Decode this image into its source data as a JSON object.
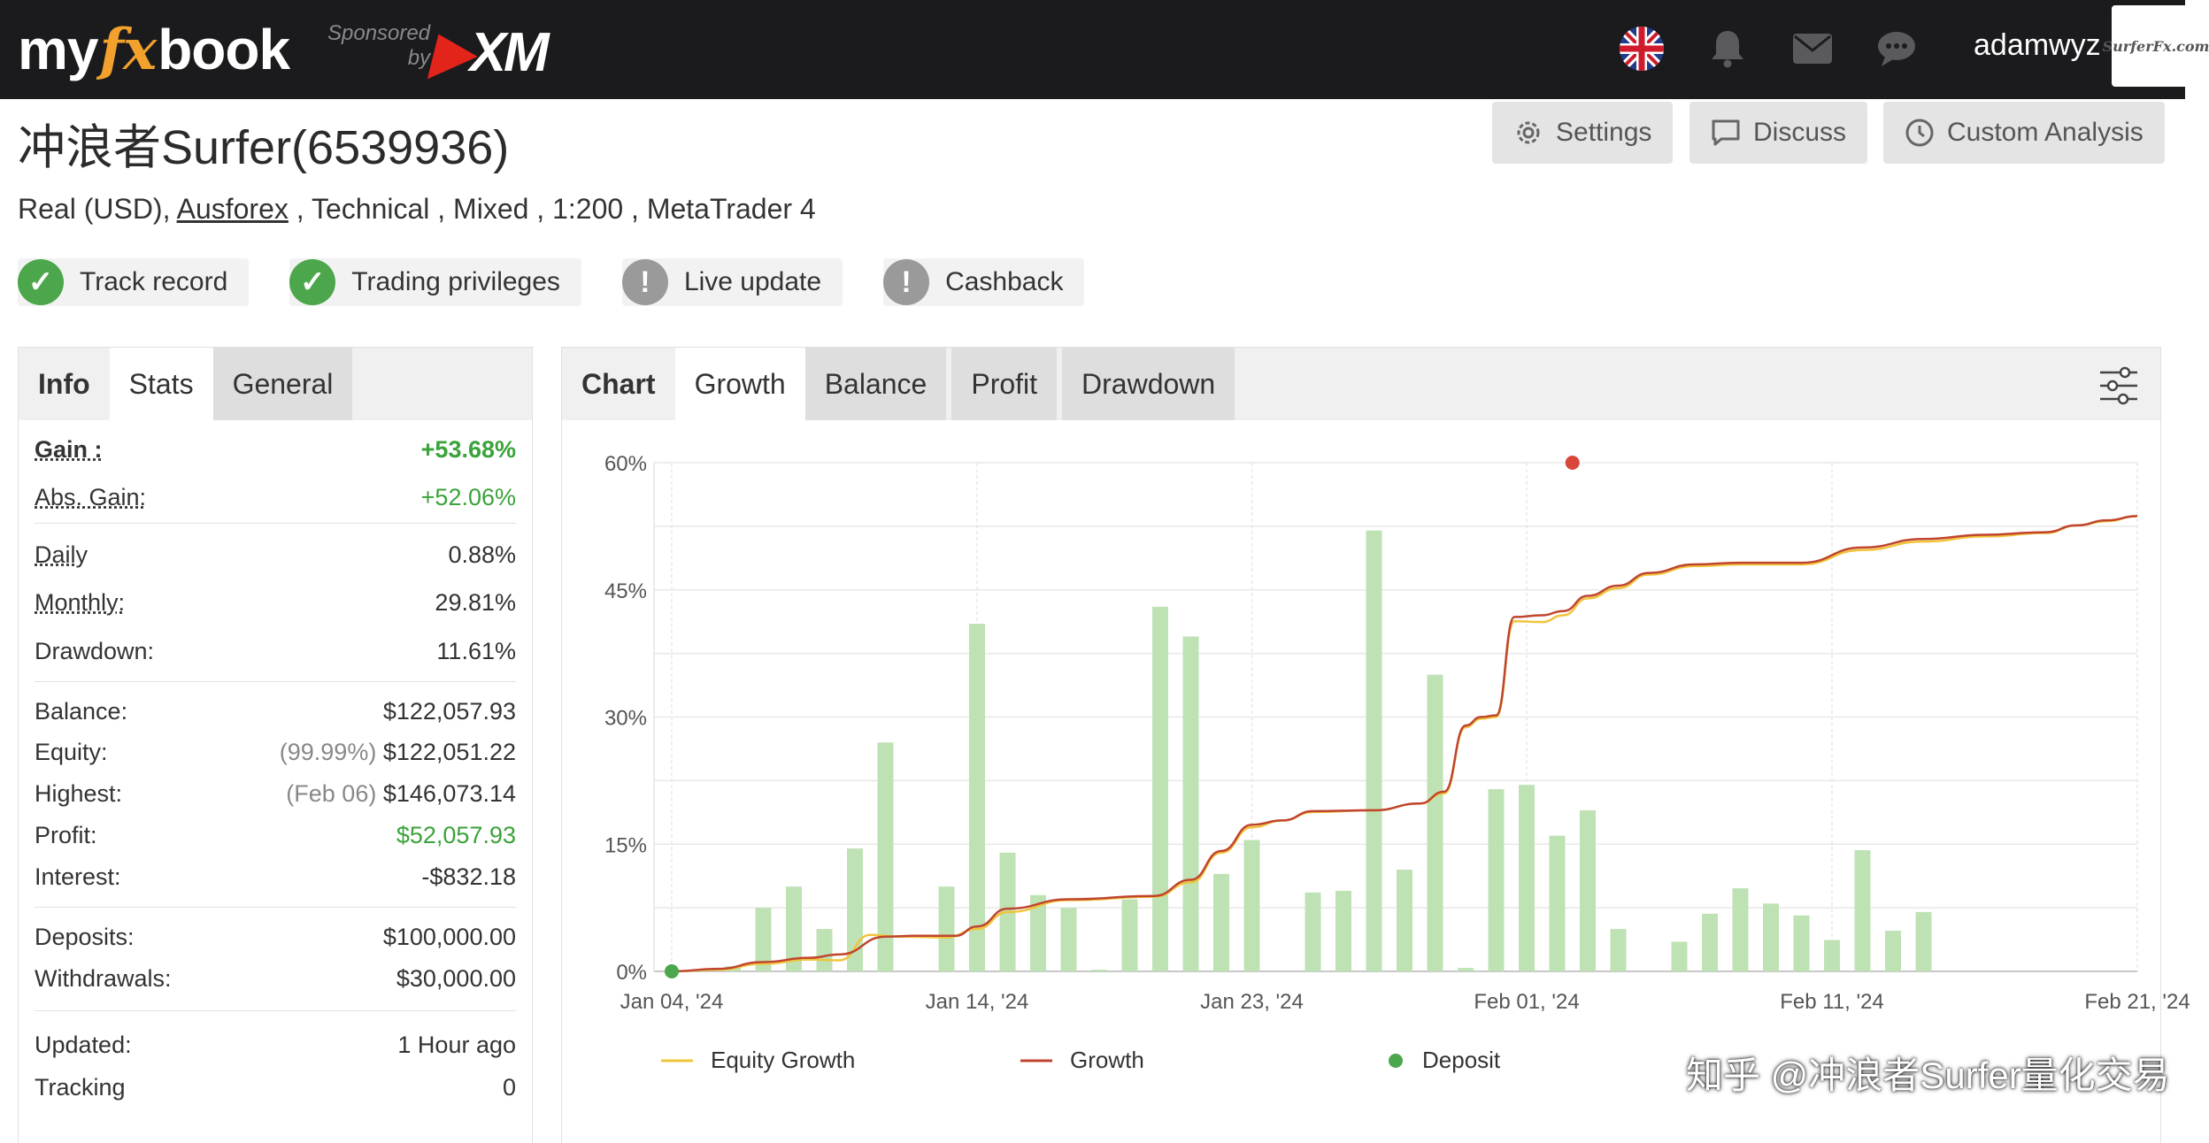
{
  "navbar": {
    "logo_my": "my",
    "logo_fx": "fx",
    "logo_book": "book",
    "sponsored_line1": "Sponsored",
    "sponsored_line2": "by",
    "sponsor_brand_x": "X",
    "sponsor_brand_m": "M",
    "icons": [
      "uk-flag-icon",
      "bell-icon",
      "mail-icon",
      "chat-icon"
    ],
    "username": "adamwyz",
    "avatar_text": "SurferFx.com"
  },
  "header": {
    "title": "冲浪者Surfer(6539936)",
    "account_type": "Real (USD), ",
    "broker": "Ausforex",
    "details": " , Technical , Mixed , 1:200 , MetaTrader 4",
    "buttons": {
      "settings": "Settings",
      "discuss": "Discuss",
      "custom_analysis": "Custom Analysis"
    },
    "badges": [
      {
        "label": "Track record",
        "status": "ok"
      },
      {
        "label": "Trading privileges",
        "status": "ok"
      },
      {
        "label": "Live update",
        "status": "warn"
      },
      {
        "label": "Cashback",
        "status": "warn"
      }
    ]
  },
  "left_tabs": [
    "Info",
    "Stats",
    "General"
  ],
  "stats": {
    "gain_label": "Gain :",
    "gain": "+53.68%",
    "abs_gain_label": "Abs. Gain:",
    "abs_gain": "+52.06%",
    "daily_label": "Daily",
    "daily": "0.88%",
    "monthly_label": "Monthly:",
    "monthly": "29.81%",
    "drawdown_label": "Drawdown:",
    "drawdown": "11.61%",
    "balance_label": "Balance:",
    "balance": "$122,057.93",
    "equity_label": "Equity:",
    "equity_pct": "(99.99%)",
    "equity": "$122,051.22",
    "highest_label": "Highest:",
    "highest_date": "(Feb 06)",
    "highest": "$146,073.14",
    "profit_label": "Profit:",
    "profit": "$52,057.93",
    "interest_label": "Interest:",
    "interest": "-$832.18",
    "deposits_label": "Deposits:",
    "deposits": "$100,000.00",
    "withdrawals_label": "Withdrawals:",
    "withdrawals": "$30,000.00",
    "updated_label": "Updated:",
    "updated": "1 Hour ago",
    "tracking_label": "Tracking",
    "tracking": "0"
  },
  "chart_tabs": [
    "Chart",
    "Growth",
    "Balance",
    "Profit",
    "Drawdown"
  ],
  "chart_data": {
    "type": "line",
    "title": "",
    "ylim": [
      0,
      60
    ],
    "y_ticks": [
      "0%",
      "15%",
      "30%",
      "45%",
      "60%"
    ],
    "x_range_days": [
      0,
      48
    ],
    "x_ticks": [
      {
        "label": "Jan 04, '24",
        "day": 0
      },
      {
        "label": "Jan 14, '24",
        "day": 10
      },
      {
        "label": "Jan 23, '24",
        "day": 19
      },
      {
        "label": "Feb 01, '24",
        "day": 28
      },
      {
        "label": "Feb 11, '24",
        "day": 38
      },
      {
        "label": "Feb 21, '24",
        "day": 48
      }
    ],
    "bars": [
      {
        "day": 2,
        "value": 0.6
      },
      {
        "day": 3,
        "value": 7.5
      },
      {
        "day": 4,
        "value": 10
      },
      {
        "day": 5,
        "value": 5
      },
      {
        "day": 6,
        "value": 14.5
      },
      {
        "day": 7,
        "value": 27
      },
      {
        "day": 9,
        "value": 10
      },
      {
        "day": 10,
        "value": 41
      },
      {
        "day": 11,
        "value": 14
      },
      {
        "day": 12,
        "value": 9
      },
      {
        "day": 13,
        "value": 7.5
      },
      {
        "day": 14,
        "value": 0.2
      },
      {
        "day": 15,
        "value": 8.5
      },
      {
        "day": 16,
        "value": 43
      },
      {
        "day": 17,
        "value": 39.5
      },
      {
        "day": 18,
        "value": 11.5
      },
      {
        "day": 19,
        "value": 15.5
      },
      {
        "day": 21,
        "value": 9.3
      },
      {
        "day": 22,
        "value": 9.5
      },
      {
        "day": 23,
        "value": 52
      },
      {
        "day": 24,
        "value": 12
      },
      {
        "day": 25,
        "value": 35
      },
      {
        "day": 26,
        "value": 0.4
      },
      {
        "day": 27,
        "value": 21.5
      },
      {
        "day": 28,
        "value": 22
      },
      {
        "day": 29,
        "value": 16
      },
      {
        "day": 30,
        "value": 19
      },
      {
        "day": 31,
        "value": 5
      },
      {
        "day": 33,
        "value": 3.5
      },
      {
        "day": 34,
        "value": 6.8
      },
      {
        "day": 35,
        "value": 9.8
      },
      {
        "day": 36,
        "value": 8
      },
      {
        "day": 37,
        "value": 6.6
      },
      {
        "day": 38,
        "value": 3.7
      },
      {
        "day": 39,
        "value": 14.3
      },
      {
        "day": 40,
        "value": 4.8
      },
      {
        "day": 41,
        "value": 7
      }
    ],
    "series": [
      {
        "name": "Equity Growth",
        "color": "#f0c43a",
        "points": [
          [
            0,
            0
          ],
          [
            1.5,
            0.2
          ],
          [
            3,
            0.9
          ],
          [
            4.5,
            1.4
          ],
          [
            5.5,
            1.3
          ],
          [
            6.5,
            4.3
          ],
          [
            7.5,
            4.1
          ],
          [
            9,
            4
          ],
          [
            10,
            5
          ],
          [
            11,
            7
          ],
          [
            13,
            8.4
          ],
          [
            15.8,
            8.8
          ],
          [
            17,
            10.5
          ],
          [
            18,
            14
          ],
          [
            19,
            17
          ],
          [
            20,
            17.8
          ],
          [
            21,
            18.8
          ],
          [
            23,
            19
          ],
          [
            24.5,
            19.8
          ],
          [
            25.3,
            21
          ],
          [
            26,
            28.8
          ],
          [
            26.5,
            29.8
          ],
          [
            27,
            30
          ],
          [
            27.6,
            41.3
          ],
          [
            28.5,
            41.2
          ],
          [
            29.2,
            42
          ],
          [
            30,
            44
          ],
          [
            31,
            45.2
          ],
          [
            32,
            46.8
          ],
          [
            33.5,
            47.8
          ],
          [
            35,
            48
          ],
          [
            37,
            48
          ],
          [
            39,
            49.7
          ],
          [
            41,
            50.7
          ],
          [
            43,
            51.3
          ],
          [
            45,
            51.7
          ],
          [
            46,
            52.6
          ],
          [
            47,
            53.1
          ],
          [
            48,
            53.7
          ]
        ]
      },
      {
        "name": "Growth",
        "color": "#c0452f",
        "points": [
          [
            0,
            0
          ],
          [
            1.5,
            0.3
          ],
          [
            3,
            1.1
          ],
          [
            4.5,
            1.6
          ],
          [
            5.5,
            2
          ],
          [
            7,
            4.1
          ],
          [
            8,
            4.2
          ],
          [
            9.3,
            4.2
          ],
          [
            10,
            5.3
          ],
          [
            11,
            7.4
          ],
          [
            13,
            8.5
          ],
          [
            15.8,
            8.9
          ],
          [
            17,
            10.8
          ],
          [
            18,
            14.2
          ],
          [
            19,
            17.3
          ],
          [
            20,
            17.8
          ],
          [
            21,
            18.9
          ],
          [
            23,
            19
          ],
          [
            24.5,
            19.8
          ],
          [
            25.3,
            21.2
          ],
          [
            26,
            29
          ],
          [
            26.5,
            30
          ],
          [
            27,
            30.2
          ],
          [
            27.6,
            41.8
          ],
          [
            28.5,
            42
          ],
          [
            29.2,
            42.5
          ],
          [
            30,
            44.3
          ],
          [
            31,
            45.5
          ],
          [
            32,
            47
          ],
          [
            33.5,
            48
          ],
          [
            35,
            48.2
          ],
          [
            37,
            48.2
          ],
          [
            39,
            50
          ],
          [
            41,
            51
          ],
          [
            43,
            51.5
          ],
          [
            45,
            51.8
          ],
          [
            46,
            52.6
          ],
          [
            47,
            53.2
          ],
          [
            48,
            53.7
          ]
        ]
      }
    ],
    "deposit_points": [
      {
        "day": 0,
        "value": 0
      }
    ],
    "highlight_point": {
      "day": 29.5,
      "value": 60
    },
    "legend": [
      "Equity Growth",
      "Growth",
      "Deposit"
    ],
    "colors": {
      "bars": "#bfe2b5",
      "deposit": "#4ca64c",
      "highlight": "#d9463a",
      "grid": "#e8e8e8"
    }
  },
  "watermark": "知乎 @冲浪者Surfer量化交易"
}
